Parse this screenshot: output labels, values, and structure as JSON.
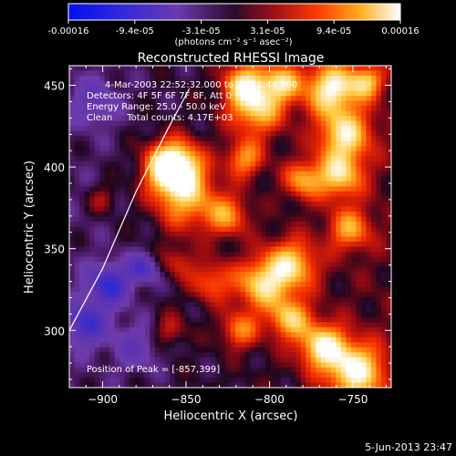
{
  "colorbar": {
    "ticks": [
      "-0.00016",
      "-9.4e-05",
      "-3.1e-05",
      "3.1e-05",
      "9.4e-05",
      "0.00016"
    ],
    "units": "(photons cm⁻² s⁻¹ asec⁻²)",
    "range": [
      -0.00016,
      0.00016
    ]
  },
  "chart_data": {
    "type": "heatmap",
    "title": "Reconstructed RHESSI Image",
    "xlabel": "Heliocentric X (arcsec)",
    "ylabel": "Heliocentric Y (arcsec)",
    "xlim": [
      -920,
      -727
    ],
    "ylim": [
      265,
      462
    ],
    "x_ticks": [
      -900,
      -850,
      -800,
      -750
    ],
    "y_ticks": [
      300,
      350,
      400,
      450
    ],
    "x_tick_labels": [
      "−900",
      "−850",
      "−800",
      "−750"
    ],
    "y_tick_labels": [
      "300",
      "350",
      "400",
      "450"
    ],
    "annotations": [
      "4-Mar-2003 22:52:32.000 to 22:56:44.000",
      "Detectors: 4F 5F 6F 7F 8F, Att 0",
      "Energy Range: 25.0 - 50.0 keV",
      "Clean     Total counts: 4.17E+03"
    ],
    "peak_label": "Position of Peak = [-857,399]",
    "peak": [
      -857,
      399
    ],
    "limb_points": [
      [
        -920,
        300
      ],
      [
        -900,
        338
      ],
      [
        -880,
        385
      ],
      [
        -860,
        425
      ],
      [
        -848,
        448
      ]
    ],
    "sources": [
      {
        "x": -858,
        "y": 400,
        "sigma": 11,
        "amp": 1.25
      },
      {
        "x": -850,
        "y": 380,
        "sigma": 14,
        "amp": 0.6
      },
      {
        "x": -825,
        "y": 370,
        "sigma": 9,
        "amp": 0.5
      },
      {
        "x": -815,
        "y": 405,
        "sigma": 8,
        "amp": 0.55
      },
      {
        "x": -808,
        "y": 437,
        "sigma": 12,
        "amp": 0.75
      },
      {
        "x": -815,
        "y": 452,
        "sigma": 9,
        "amp": 0.6
      },
      {
        "x": -792,
        "y": 452,
        "sigma": 8,
        "amp": 0.6
      },
      {
        "x": -763,
        "y": 448,
        "sigma": 11,
        "amp": 0.85
      },
      {
        "x": -742,
        "y": 452,
        "sigma": 7,
        "amp": 0.6
      },
      {
        "x": -755,
        "y": 420,
        "sigma": 11,
        "amp": 0.75
      },
      {
        "x": -758,
        "y": 395,
        "sigma": 10,
        "amp": 0.7
      },
      {
        "x": -752,
        "y": 362,
        "sigma": 9,
        "amp": 0.55
      },
      {
        "x": -780,
        "y": 392,
        "sigma": 8,
        "amp": 0.55
      },
      {
        "x": -787,
        "y": 340,
        "sigma": 11,
        "amp": 0.7
      },
      {
        "x": -805,
        "y": 328,
        "sigma": 11,
        "amp": 0.7
      },
      {
        "x": -818,
        "y": 300,
        "sigma": 8,
        "amp": 0.5
      },
      {
        "x": -788,
        "y": 307,
        "sigma": 9,
        "amp": 0.65
      },
      {
        "x": -768,
        "y": 290,
        "sigma": 10,
        "amp": 0.8
      },
      {
        "x": -748,
        "y": 275,
        "sigma": 12,
        "amp": 0.85
      },
      {
        "x": -835,
        "y": 330,
        "sigma": 9,
        "amp": 0.45
      },
      {
        "x": -855,
        "y": 342,
        "sigma": 7,
        "amp": 0.3
      },
      {
        "x": -860,
        "y": 300,
        "sigma": 7,
        "amp": 0.3
      },
      {
        "x": -900,
        "y": 380,
        "sigma": 6,
        "amp": 0.25
      },
      {
        "x": -896,
        "y": 328,
        "sigma": 9,
        "amp": -0.6
      },
      {
        "x": -910,
        "y": 304,
        "sigma": 9,
        "amp": -0.55
      },
      {
        "x": -876,
        "y": 338,
        "sigma": 6,
        "amp": -0.5
      },
      {
        "x": -880,
        "y": 290,
        "sigma": 10,
        "amp": -0.3
      },
      {
        "x": -905,
        "y": 440,
        "sigma": 10,
        "amp": -0.3
      }
    ]
  }
}
